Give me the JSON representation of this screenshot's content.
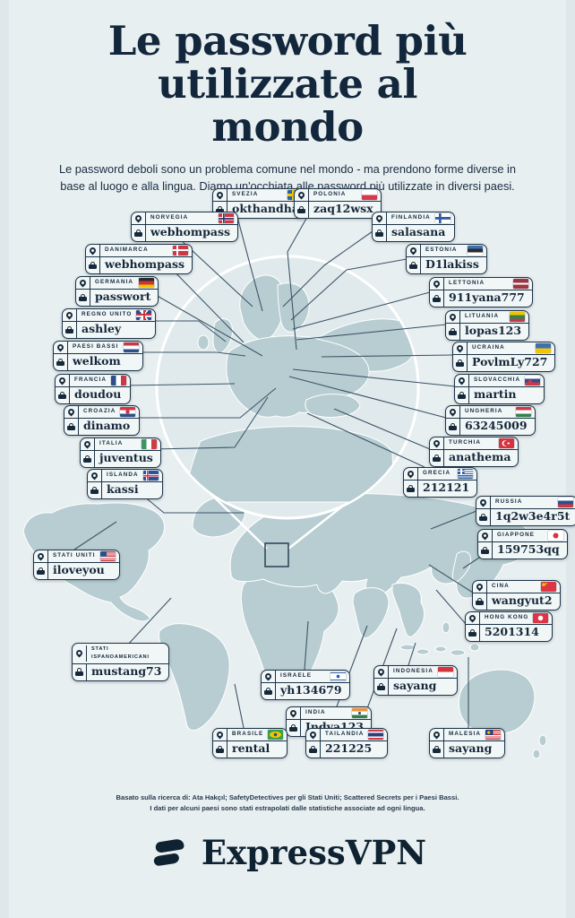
{
  "page": {
    "background": "#e8eff1",
    "accent_dark": "#13273c",
    "map_fill": "#b7cdd1",
    "connector_color": "#3d5468"
  },
  "header": {
    "title": "Le password più utilizzate al mondo",
    "subtitle": "Le password deboli sono un problema comune nel mondo - ma prendono forme diverse in base al luogo e alla lingua. Diamo un'occhiata alle password più utilizzate in diversi paesi."
  },
  "labels": [
    {
      "id": "svezia",
      "country": "SVEZIA",
      "password": "okthandha",
      "flag": "sweden"
    },
    {
      "id": "polonia",
      "country": "POLONIA",
      "password": "zaq12wsx",
      "flag": "poland"
    },
    {
      "id": "norvegia",
      "country": "NORVEGIA",
      "password": "webhompass",
      "flag": "norway"
    },
    {
      "id": "finlandia",
      "country": "FINLANDIA",
      "password": "salasana",
      "flag": "finland"
    },
    {
      "id": "danimarca",
      "country": "DANIMARCA",
      "password": "webhompass",
      "flag": "denmark"
    },
    {
      "id": "estonia",
      "country": "ESTONIA",
      "password": "D1lakiss",
      "flag": "estonia"
    },
    {
      "id": "germania",
      "country": "GERMANIA",
      "password": "passwort",
      "flag": "germany"
    },
    {
      "id": "lettonia",
      "country": "LETTONIA",
      "password": "911yana777",
      "flag": "latvia"
    },
    {
      "id": "regno-unito",
      "country": "REGNO UNITO",
      "password": "ashley",
      "flag": "uk"
    },
    {
      "id": "lituania",
      "country": "LITUANIA",
      "password": "lopas123",
      "flag": "lithuania"
    },
    {
      "id": "paesi-bassi",
      "country": "PAESI BASSI",
      "password": "welkom",
      "flag": "netherlands"
    },
    {
      "id": "ucraina",
      "country": "UCRAINA",
      "password": "PovlmLy727",
      "flag": "ukraine"
    },
    {
      "id": "francia",
      "country": "FRANCIA",
      "password": "doudou",
      "flag": "france"
    },
    {
      "id": "slovacchia",
      "country": "SLOVACCHIA",
      "password": "martin",
      "flag": "slovakia"
    },
    {
      "id": "croazia",
      "country": "CROAZIA",
      "password": "dinamo",
      "flag": "croatia"
    },
    {
      "id": "ungheria",
      "country": "UNGHERIA",
      "password": "63245009",
      "flag": "hungary"
    },
    {
      "id": "italia",
      "country": "ITALIA",
      "password": "juventus",
      "flag": "italy"
    },
    {
      "id": "turchia",
      "country": "TURCHIA",
      "password": "anathema",
      "flag": "turkey"
    },
    {
      "id": "islanda",
      "country": "ISLANDA",
      "password": "kassi",
      "flag": "iceland"
    },
    {
      "id": "grecia",
      "country": "GRECIA",
      "password": "212121",
      "flag": "greece"
    },
    {
      "id": "russia",
      "country": "RUSSIA",
      "password": "1q2w3e4r5t",
      "flag": "russia"
    },
    {
      "id": "giappone",
      "country": "GIAPPONE",
      "password": "159753qq",
      "flag": "japan"
    },
    {
      "id": "stati-uniti",
      "country": "STATI UNITI",
      "password": "iloveyou",
      "flag": "usa"
    },
    {
      "id": "cina",
      "country": "CINA",
      "password": "wangyut2",
      "flag": "china"
    },
    {
      "id": "hong-kong",
      "country": "HONG KONG",
      "password": "5201314",
      "flag": "hongkong"
    },
    {
      "id": "stati-ispanoamericani",
      "country": "STATI ISPANOAMERICANI",
      "password": "mustang73",
      "flag": "none"
    },
    {
      "id": "israele",
      "country": "ISRAELE",
      "password": "yh134679",
      "flag": "israel"
    },
    {
      "id": "indonesia",
      "country": "INDONESIA",
      "password": "sayang",
      "flag": "indonesia"
    },
    {
      "id": "india",
      "country": "INDIA",
      "password": "Indya123",
      "flag": "india"
    },
    {
      "id": "brasile",
      "country": "BRASILE",
      "password": "rental",
      "flag": "brazil"
    },
    {
      "id": "tailandia",
      "country": "TAILANDIA",
      "password": "221225",
      "flag": "thailand"
    },
    {
      "id": "malesia",
      "country": "MALESIA",
      "password": "sayang",
      "flag": "malaysia"
    }
  ],
  "footer": {
    "note_line1": "Basato sulla ricerca di: Ata Hakçıl; SafetyDetectives per gli Stati Uniti; Scattered Secrets per i Paesi Bassi.",
    "note_line2": "I dati per alcuni paesi sono stati estrapolati dalle statistiche associate ad ogni lingua.",
    "brand": "ExpressVPN"
  }
}
